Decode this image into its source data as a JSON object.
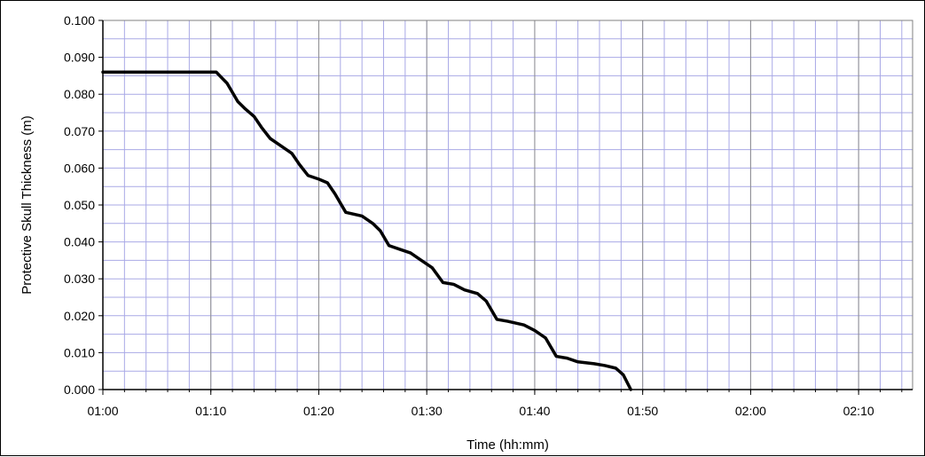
{
  "chart_data": {
    "type": "line",
    "xlabel": "Time (hh:mm)",
    "ylabel": "Protective Skull Thickness (m)",
    "x_unit": "hh:mm",
    "xlim": [
      "01:00",
      "02:15"
    ],
    "ylim": [
      0,
      0.1
    ],
    "x_tick_labels": [
      "01:00",
      "01:10",
      "01:20",
      "01:30",
      "01:40",
      "01:50",
      "02:00",
      "02:10"
    ],
    "y_tick_labels": [
      "0.000",
      "0.010",
      "0.020",
      "0.030",
      "0.040",
      "0.050",
      "0.060",
      "0.070",
      "0.080",
      "0.090",
      "0.100"
    ],
    "grid": true,
    "line_color": "#000000",
    "grid_color": "#a9a9e6",
    "series": [
      {
        "x": [
          "01:00",
          "01:10.5",
          "01:11.5",
          "01:12.5",
          "01:13.2",
          "01:14",
          "01:14.7",
          "01:15.5",
          "01:16.5",
          "01:17.5",
          "01:18.2",
          "01:19",
          "01:20",
          "01:20.8",
          "01:21.5",
          "01:22.5",
          "01:24",
          "01:25",
          "01:25.7",
          "01:26.5",
          "01:27.5",
          "01:28.5",
          "01:29.5",
          "01:30.5",
          "01:31.5",
          "01:32.5",
          "01:33.5",
          "01:34.7",
          "01:35.5",
          "01:36.5",
          "01:37.5",
          "01:39",
          "01:40",
          "01:41",
          "01:42",
          "01:43",
          "01:44",
          "01:45.5",
          "01:46.5",
          "01:47.5",
          "01:48.2",
          "01:48.9"
        ],
        "y": [
          0.086,
          0.086,
          0.083,
          0.078,
          0.076,
          0.074,
          0.071,
          0.068,
          0.066,
          0.064,
          0.061,
          0.058,
          0.057,
          0.056,
          0.053,
          0.048,
          0.047,
          0.045,
          0.043,
          0.039,
          0.038,
          0.037,
          0.035,
          0.033,
          0.029,
          0.0285,
          0.027,
          0.026,
          0.024,
          0.019,
          0.0185,
          0.0175,
          0.016,
          0.014,
          0.009,
          0.0085,
          0.0075,
          0.007,
          0.0065,
          0.0058,
          0.004,
          0.0
        ]
      }
    ]
  }
}
